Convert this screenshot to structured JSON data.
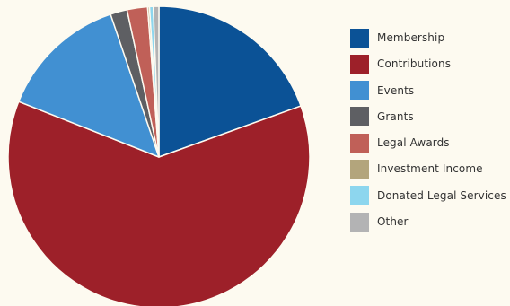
{
  "chart_data": {
    "type": "pie",
    "title": "",
    "legend_position": "right",
    "slices": [
      {
        "label": "Membership",
        "value": 19.5,
        "color": "#0b5296"
      },
      {
        "label": "Contributions",
        "value": 61.5,
        "color": "#9d2029"
      },
      {
        "label": "Events",
        "value": 13.8,
        "color": "#4190d2"
      },
      {
        "label": "Grants",
        "value": 1.8,
        "color": "#5e5f63"
      },
      {
        "label": "Legal Awards",
        "value": 2.2,
        "color": "#c06058"
      },
      {
        "label": "Investment Income",
        "value": 0.2,
        "color": "#b3a57c"
      },
      {
        "label": "Donated Legal Services",
        "value": 0.4,
        "color": "#8dd6ee"
      },
      {
        "label": "Other",
        "value": 0.6,
        "color": "#b3b3b4"
      }
    ]
  }
}
